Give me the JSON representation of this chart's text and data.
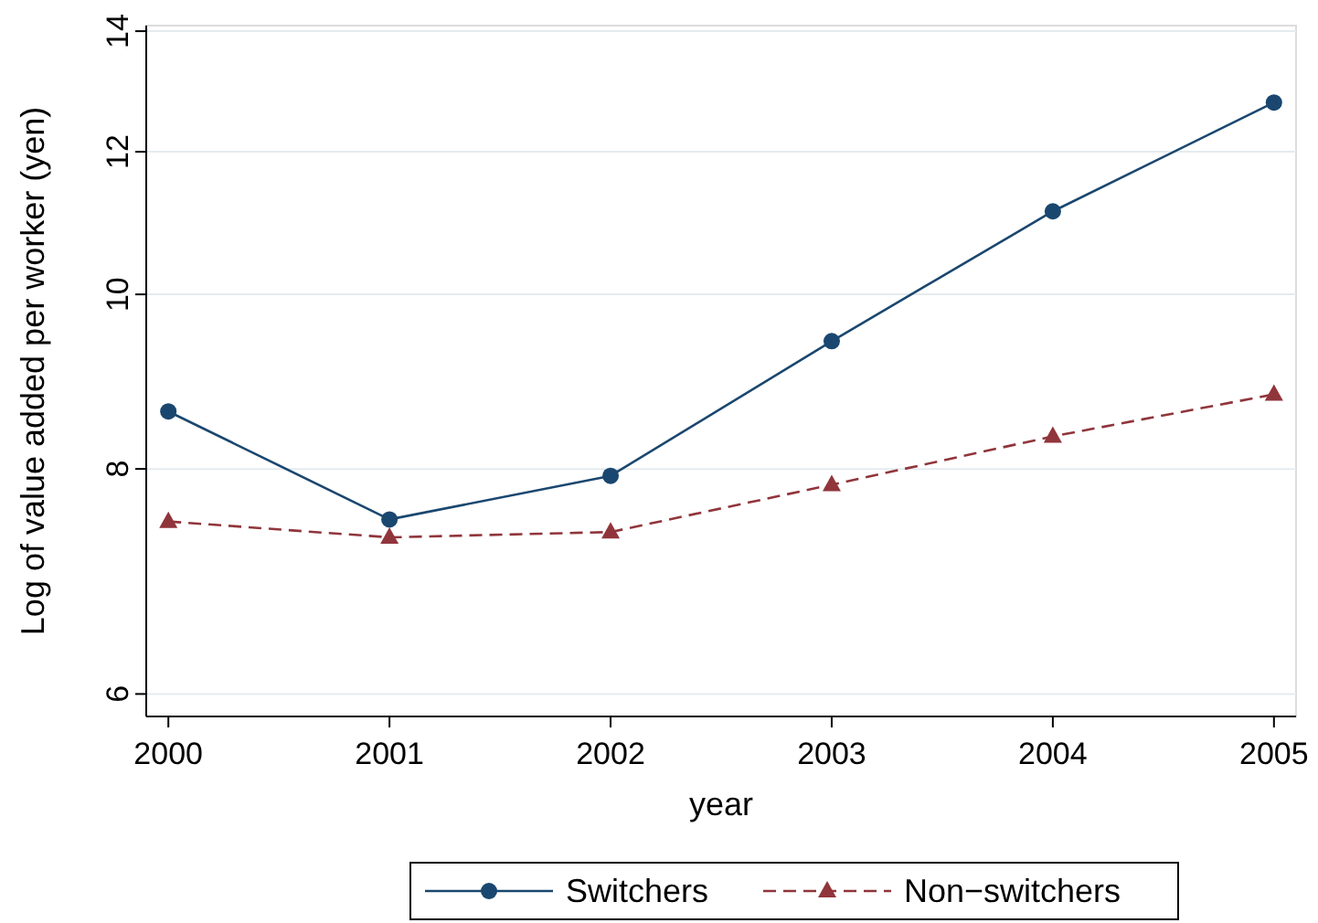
{
  "chart_data": {
    "type": "line",
    "xlabel": "year",
    "ylabel": "Log of value added per worker (yen)",
    "x": [
      2000,
      2001,
      2002,
      2003,
      2004,
      2005
    ],
    "xlim": [
      1999.9,
      2005.1
    ],
    "xticks": [
      2000,
      2001,
      2002,
      2003,
      2004,
      2005
    ],
    "ylim": [
      5.83,
      14.1
    ],
    "yticks": [
      6,
      8,
      10,
      12,
      14
    ],
    "log": "y",
    "grid": "y",
    "legend": "bottom",
    "series": [
      {
        "name": "Switchers",
        "color": "#1a476f",
        "marker": "circle",
        "line_style": "solid",
        "values": [
          8.61,
          7.5,
          7.93,
          9.42,
          11.12,
          12.78
        ]
      },
      {
        "name": "Non−switchers",
        "color": "#90353b",
        "marker": "triangle",
        "line_style": "dashed",
        "values": [
          7.48,
          7.33,
          7.38,
          7.84,
          8.34,
          8.8
        ]
      }
    ]
  }
}
